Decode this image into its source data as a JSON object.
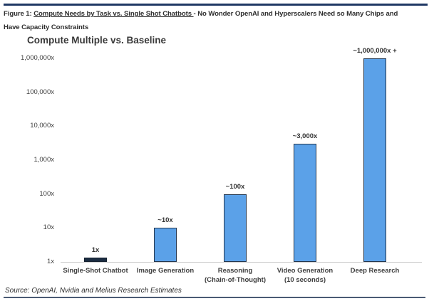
{
  "page": {
    "heading": {
      "prefix": "Figure 1: ",
      "underlined": "Compute Needs by Task vs. Single Shot Chatbots ",
      "rest": "- No Wonder OpenAI and Hyperscalers Need so Many Chips and",
      "line2": "Have Capacity Constraints"
    },
    "source": "Source: OpenAI, Nvidia and Melius Research Estimates"
  },
  "chart_data": {
    "type": "bar",
    "title": "Compute Multiple vs. Baseline",
    "categories": [
      "Single-Shot Chatbot",
      "Image Generation",
      "Reasoning\n(Chain-of-Thought)",
      "Video Generation\n(10 seconds)",
      "Deep Research"
    ],
    "values": [
      1,
      10,
      100,
      3000,
      1000000
    ],
    "bar_labels": [
      "1x",
      "~10x",
      "~100x",
      "~3,000x",
      "~1,000,000x +"
    ],
    "y_ticks": [
      "1,000,000x",
      "100,000x",
      "10,000x",
      "1,000x",
      "100x",
      "10x",
      "1x"
    ],
    "scale": "log",
    "ylim": [
      1,
      1000000
    ],
    "grid": false,
    "legend": "none",
    "xlabel": "",
    "ylabel": "",
    "colors": {
      "bar_fill": "#5BA1E8",
      "bar_border": "#24364d",
      "baseline_bar_fill": "#1b2c42",
      "top_rule": "#1F3864",
      "bottom_rule": "#4a5a74",
      "axis_line": "#c9c9c9",
      "text": "#3f3f3f"
    }
  }
}
